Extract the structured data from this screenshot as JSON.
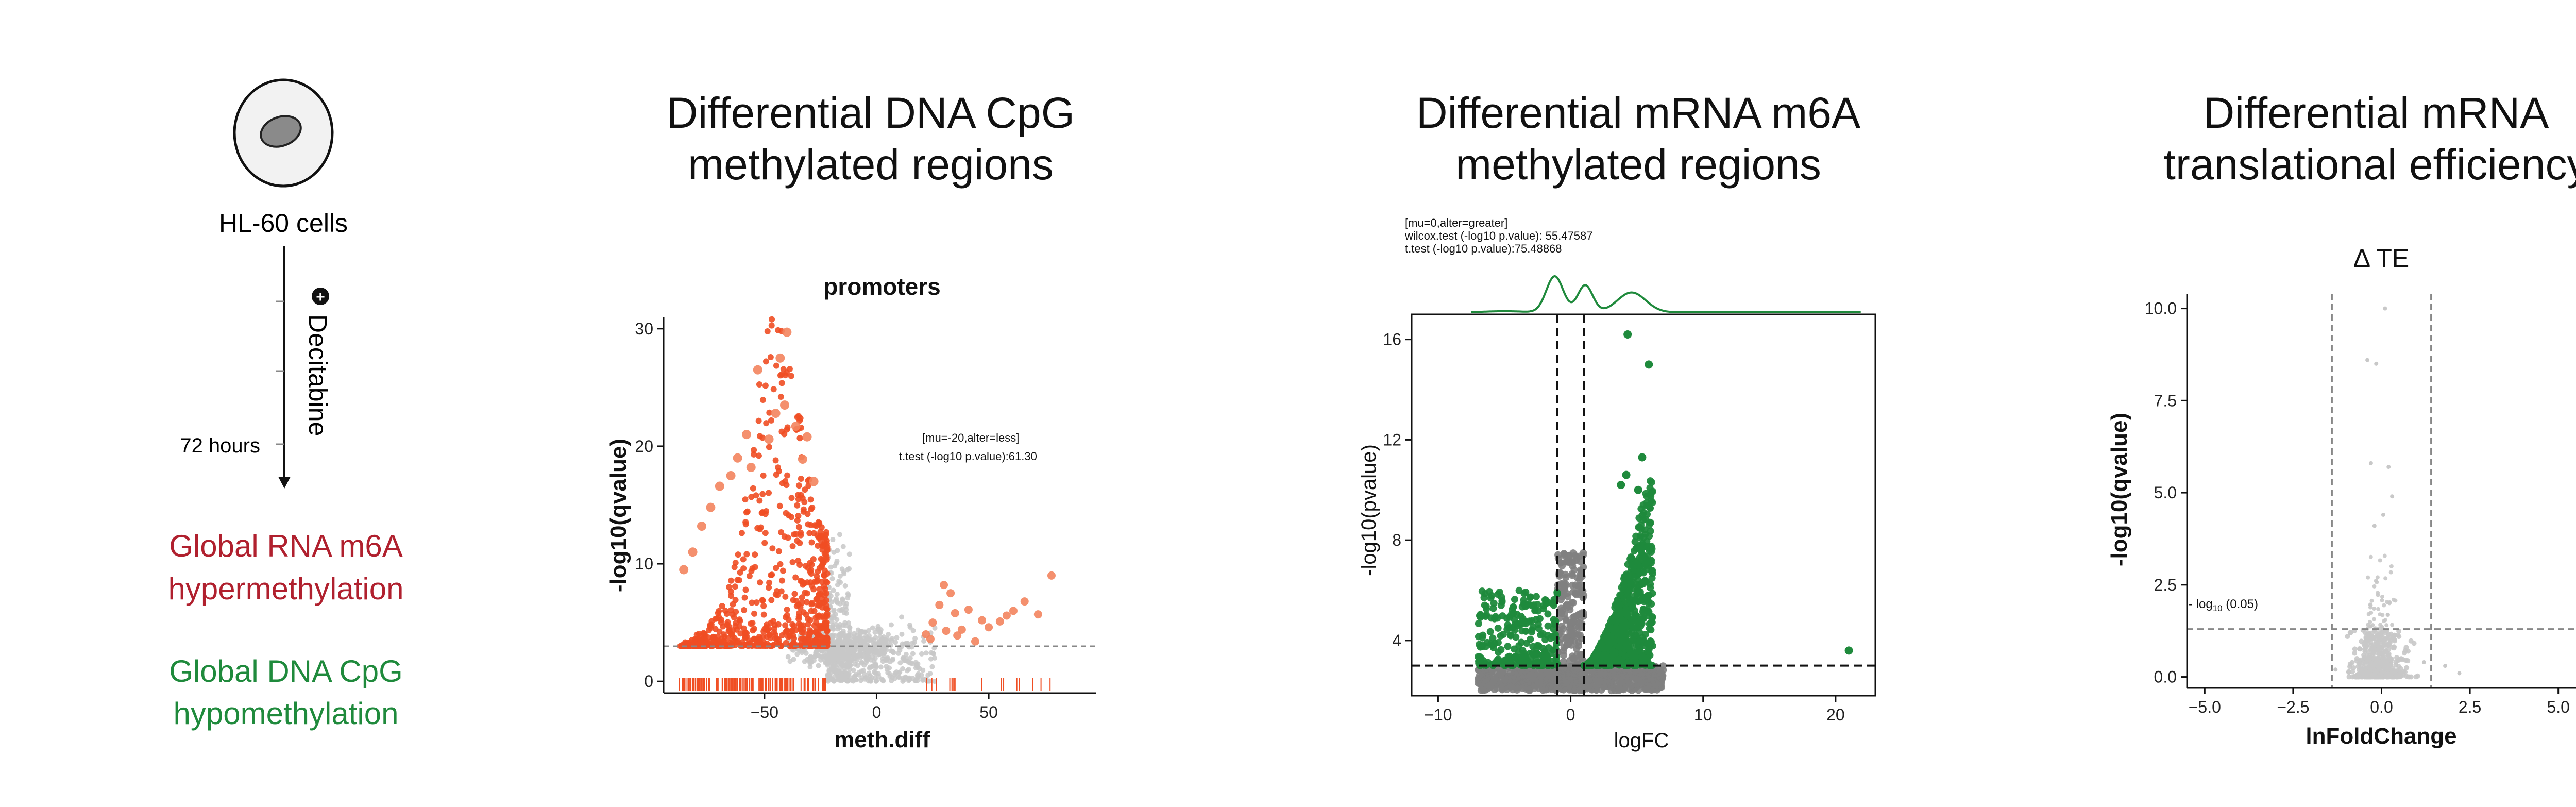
{
  "left": {
    "cell_label": "HL-60 cells",
    "treatment": "Decitabine",
    "duration": "72 hours",
    "result1_line1": "Global RNA m6A",
    "result1_line2": "hypermethylation",
    "result1_color": "#b0202e",
    "result2_line1": "Global DNA CpG",
    "result2_line2": "hypomethylation",
    "result2_color": "#1f8a3c"
  },
  "panels": [
    {
      "title_line1": "Differential DNA CpG",
      "title_line2": "methylated regions"
    },
    {
      "title_line1": "Differential mRNA m6A",
      "title_line2": "methylated regions"
    },
    {
      "title_line1": "Differential mRNA",
      "title_line2": "translational efficiency"
    }
  ],
  "chart_data": [
    {
      "type": "scatter",
      "title": "promoters",
      "xlabel": "meth.diff",
      "ylabel": "-log10(qvalue)",
      "xlim": [
        -95,
        98
      ],
      "ylim": [
        -1,
        31
      ],
      "xticks": [
        "-50",
        "0",
        "50"
      ],
      "yticks": [
        "0",
        "10",
        "20",
        "30"
      ],
      "hline": 3,
      "annotation_line1": "[mu=-20,alter=less]",
      "annotation_line2": "t.test (-log10 p.value):61.30",
      "highlight_color": "#f04e23",
      "background_color": "#c8c8c8",
      "rug": true,
      "series": [
        {
          "role": "significant hypomethylated",
          "x_range": [
            -88,
            -22
          ],
          "y_range": [
            3,
            30
          ]
        },
        {
          "role": "significant hypermethylated",
          "x_range": [
            20,
            78
          ],
          "y_range": [
            3,
            9
          ]
        },
        {
          "role": "not significant",
          "x_range": [
            -40,
            60
          ],
          "y_range": [
            0,
            6
          ]
        }
      ]
    },
    {
      "type": "scatter",
      "title": "",
      "xlabel": "logFC",
      "ylabel": "-log10(pvalue)",
      "xlim": [
        -12,
        23
      ],
      "ylim": [
        1.8,
        17
      ],
      "xticks": [
        "-10",
        "0",
        "10",
        "20"
      ],
      "yticks": [
        "4",
        "8",
        "12",
        "16"
      ],
      "hline": 3,
      "vlines": [
        -1,
        1
      ],
      "annotation_line1": "[mu=0,alter=greater]",
      "annotation_line2": "wilcox.test (-log10 p.value): 55.47587",
      "annotation_line3": "t.test (-log10 p.value):75.48868",
      "highlight_color": "#1f8a3c",
      "background_color": "#808080",
      "density_on_top": true,
      "series": [
        {
          "role": "significant up",
          "x_range": [
            1,
            7
          ],
          "y_range": [
            3,
            16.3
          ]
        },
        {
          "role": "significant down",
          "x_range": [
            -7,
            -1
          ],
          "y_range": [
            3,
            6
          ]
        },
        {
          "role": "not significant",
          "x_range": [
            -7,
            7
          ],
          "y_range": [
            2,
            3
          ]
        },
        {
          "role": "outlier",
          "x": 21,
          "y": 3.6
        }
      ]
    },
    {
      "type": "scatter",
      "title": "Δ TE",
      "xlabel": "lnFoldChange",
      "ylabel": "-log10(qvalue)",
      "xlim": [
        -5.5,
        5.5
      ],
      "ylim": [
        -0.3,
        10.4
      ],
      "xticks": [
        "-5.0",
        "-2.5",
        "0.0",
        "2.5",
        "5.0"
      ],
      "yticks": [
        "0.0",
        "2.5",
        "5.0",
        "7.5",
        "10.0"
      ],
      "hline": 1.3,
      "hline_label": "- log",
      "hline_label_sub": "10",
      "hline_label_tail": " (0.05)",
      "vlines": [
        -1.4,
        1.4
      ],
      "point_color": "#c8c8c8",
      "series": [
        {
          "role": "all genes",
          "x_range": [
            -1.5,
            2
          ],
          "y_range": [
            0,
            10
          ]
        }
      ]
    }
  ]
}
